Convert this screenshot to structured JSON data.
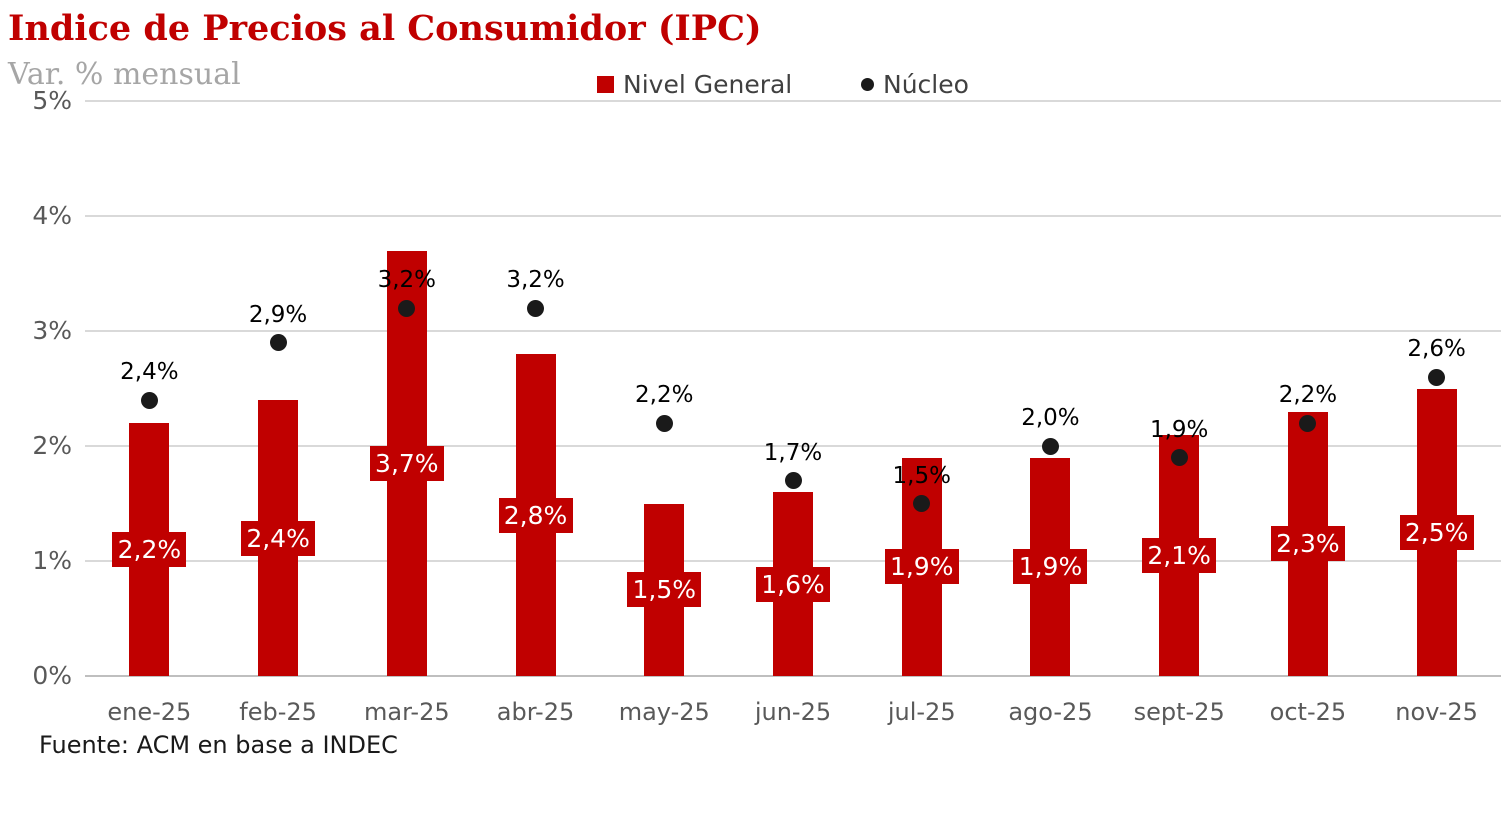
{
  "title": "Indice de Precios al Consumidor (IPC)",
  "subtitle": "Var. % mensual",
  "source": "Fuente: ACM en base a INDEC",
  "legend": {
    "items": [
      {
        "label": "Nivel General",
        "marker": "square-icon",
        "color": "#c00000"
      },
      {
        "label": "Núcleo",
        "marker": "circle-icon",
        "color": "#1a1a1a"
      }
    ]
  },
  "colors": {
    "bar": "#c00000",
    "dot": "#1a1a1a",
    "title": "#c00000",
    "subtitle": "#a6a6a6",
    "tick_text": "#595959",
    "legend_text": "#404040",
    "gridline": "#d9d9d9",
    "zero_line": "#bfbfbf",
    "bar_label_text": "#ffffff",
    "dot_label_text": "#000000"
  },
  "chart_data": {
    "type": "bar",
    "title": "Indice de Precios al Consumidor (IPC)",
    "subtitle": "Var. % mensual",
    "xlabel": "",
    "ylabel": "Var. % mensual",
    "ylim": [
      0,
      5
    ],
    "yticks": [
      "0%",
      "1%",
      "2%",
      "3%",
      "4%",
      "5%"
    ],
    "grid": true,
    "legend_position": "top",
    "categories": [
      "ene-25",
      "feb-25",
      "mar-25",
      "abr-25",
      "may-25",
      "jun-25",
      "jul-25",
      "ago-25",
      "sept-25",
      "oct-25",
      "nov-25"
    ],
    "series": [
      {
        "name": "Nivel General",
        "type": "bar",
        "color": "#c00000",
        "values": [
          2.2,
          2.4,
          3.7,
          2.8,
          1.5,
          1.6,
          1.9,
          1.9,
          2.1,
          2.3,
          2.5
        ],
        "labels": [
          "2,2%",
          "2,4%",
          "3,7%",
          "2,8%",
          "1,5%",
          "1,6%",
          "1,9%",
          "1,9%",
          "2,1%",
          "2,3%",
          "2,5%"
        ]
      },
      {
        "name": "Núcleo",
        "type": "scatter",
        "color": "#1a1a1a",
        "values": [
          2.4,
          2.9,
          3.2,
          3.2,
          2.2,
          1.7,
          1.5,
          2.0,
          1.9,
          2.2,
          2.6
        ],
        "labels": [
          "2,4%",
          "2,9%",
          "3,2%",
          "3,2%",
          "2,2%",
          "1,7%",
          "1,5%",
          "2,0%",
          "1,9%",
          "2,2%",
          "2,6%"
        ]
      }
    ]
  }
}
